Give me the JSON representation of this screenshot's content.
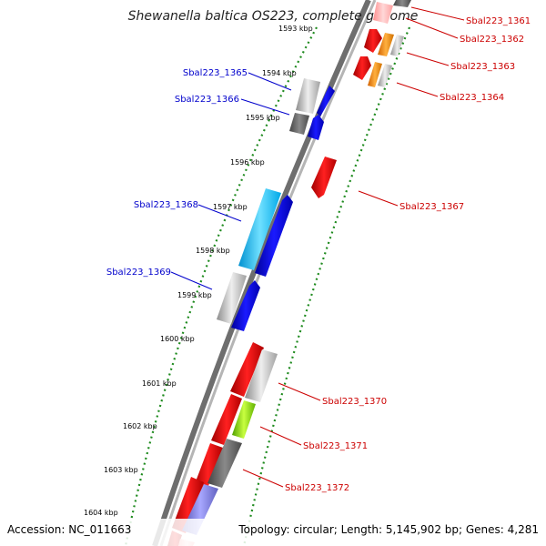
{
  "title": "Shewanella baltica OS223, complete genome",
  "footer": {
    "accession": "Accession: NC_011663",
    "topology": "Topology: circular; Length: 5,145,902 bp; Genes: 4,281"
  },
  "ticks": [
    "1593 kbp",
    "1594 kbp",
    "1595 kbp",
    "1596 kbp",
    "1597 kbp",
    "1598 kbp",
    "1599 kbp",
    "1600 kbp",
    "1601 kbp",
    "1602 kbp",
    "1603 kbp",
    "1604 kbp"
  ],
  "gene_labels": {
    "left": [
      "Sbal223_1365",
      "Sbal223_1366",
      "Sbal223_1368",
      "Sbal223_1369"
    ],
    "right": [
      "Sbal223_1361",
      "Sbal223_1362",
      "Sbal223_1363",
      "Sbal223_1364",
      "Sbal223_1367",
      "Sbal223_1370",
      "Sbal223_1371",
      "Sbal223_1372"
    ]
  },
  "colors": {
    "left_label": "#0000cc",
    "right_label": "#cc0000",
    "backbone": "#808080",
    "dots": "#228b22"
  }
}
